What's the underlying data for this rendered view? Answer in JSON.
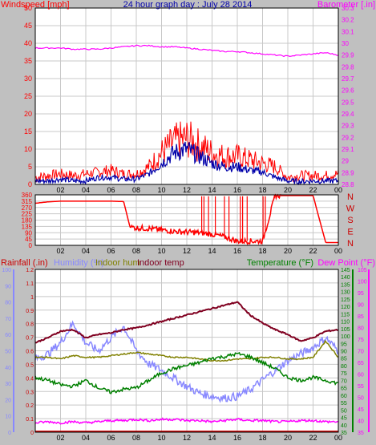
{
  "title": "24 hour graph day : July 28 2014",
  "colors": {
    "background": "#c0c0c0",
    "plot_bg": "#ffffff",
    "grid": "#c8c8c8",
    "windspeed": "#ff0000",
    "windgust_avg": "#0000aa",
    "barometer": "#ff00ff",
    "direction": "#ff0000",
    "rainfall": "#cc0000",
    "humidity": "#8888ff",
    "indoor_hum": "#808000",
    "indoor_temp": "#800020",
    "temperature": "#008000",
    "dew_point": "#ff00ff",
    "title": "#0000aa"
  },
  "x_ticks": [
    "02",
    "04",
    "06",
    "08",
    "10",
    "12",
    "14",
    "16",
    "18",
    "20",
    "22",
    "00"
  ],
  "chart_data": [
    {
      "type": "line",
      "title": "24 hour graph day : July 28 2014",
      "ylabel_left": "Windspeed [mph]",
      "ylabel_right": "Barometer [.in]",
      "ylim_left": [
        0,
        50
      ],
      "ylim_right": [
        28.8,
        30.3
      ],
      "yticks_left": [
        "0",
        "5",
        "10",
        "15",
        "20",
        "25",
        "30",
        "35",
        "40",
        "45",
        "50"
      ],
      "yticks_right": [
        "28.8",
        "28.9",
        "29",
        "29.1",
        "29.2",
        "29.3",
        "29.4",
        "29.5",
        "29.6",
        "29.7",
        "29.8",
        "29.9",
        "30",
        "30.1",
        "30.2",
        "30.3"
      ],
      "x_hours": [
        0,
        1,
        2,
        3,
        4,
        5,
        6,
        7,
        8,
        9,
        10,
        11,
        12,
        13,
        14,
        15,
        16,
        17,
        18,
        19,
        20,
        21,
        22,
        23,
        24
      ],
      "series": [
        {
          "axis": "left",
          "color": "windspeed",
          "values": [
            2,
            2.5,
            3,
            2.5,
            3,
            3.5,
            4,
            3,
            3,
            5,
            9,
            12,
            13,
            11,
            9,
            8,
            8,
            7,
            6,
            5,
            2,
            2.5,
            2.5,
            2.5,
            3
          ]
        },
        {
          "axis": "left",
          "color": "windgust_avg",
          "values": [
            1,
            1,
            1.5,
            1,
            1,
            2,
            2,
            1.5,
            1.5,
            3,
            6,
            9,
            10,
            8,
            6,
            5,
            5,
            4,
            3.5,
            2,
            1,
            0.8,
            1,
            1,
            1
          ]
        },
        {
          "axis": "right",
          "color": "barometer",
          "values": [
            29.96,
            29.96,
            29.96,
            29.95,
            29.95,
            29.95,
            29.96,
            29.97,
            29.98,
            29.98,
            29.97,
            29.97,
            29.96,
            29.95,
            29.94,
            29.93,
            29.93,
            29.92,
            29.91,
            29.9,
            29.89,
            29.9,
            29.91,
            29.92,
            29.9
          ]
        }
      ]
    },
    {
      "type": "line",
      "ylim": [
        0,
        360
      ],
      "yticks": [
        "0",
        "45",
        "90",
        "135",
        "180",
        "225",
        "270",
        "315",
        "360"
      ],
      "compass": [
        "N",
        "W",
        "S",
        "E",
        "N"
      ],
      "x_hours": [
        0,
        1,
        2,
        3,
        4,
        5,
        6,
        7,
        7.5,
        8,
        9,
        10,
        11,
        12,
        13,
        14,
        15,
        16,
        17,
        18,
        19,
        20,
        21,
        22,
        23,
        24
      ],
      "series": [
        {
          "color": "direction",
          "values": [
            300,
            310,
            315,
            315,
            315,
            315,
            315,
            312,
            130,
            125,
            120,
            110,
            100,
            95,
            90,
            80,
            60,
            30,
            30,
            30,
            355,
            355,
            355,
            355,
            20,
            20
          ]
        }
      ],
      "spikes_from_hour": [
        13,
        15,
        16,
        17,
        18
      ],
      "spike_top": 350
    },
    {
      "type": "line",
      "legend": [
        "Rainfall (.in)",
        "Humidity (%)",
        "Indoor hum",
        "Indoor temp",
        "Temperature (°F)",
        "Dew Point (°F)"
      ],
      "ylim_rain": [
        0,
        1.2
      ],
      "ylim_hum": [
        0,
        100
      ],
      "ylim_temp": [
        35,
        145
      ],
      "ylim_dew": [
        35,
        105
      ],
      "yticks_rain": [
        "0",
        "0.1",
        "0.2",
        "0.3",
        "0.4",
        "0.5",
        "0.6",
        "0.7",
        "0.8",
        "0.9",
        "1",
        "1.1",
        "1.2"
      ],
      "yticks_hum": [
        "0",
        "10",
        "20",
        "30",
        "40",
        "50",
        "60",
        "70",
        "80",
        "90",
        "100"
      ],
      "yticks_temp": [
        "35",
        "40",
        "45",
        "50",
        "55",
        "60",
        "65",
        "70",
        "75",
        "80",
        "85",
        "90",
        "95",
        "100",
        "105",
        "110",
        "115",
        "120",
        "125",
        "130",
        "135",
        "140",
        "145"
      ],
      "yticks_dew": [
        "35",
        "40",
        "45",
        "50",
        "55",
        "60",
        "65",
        "70",
        "75",
        "80",
        "85",
        "90",
        "95",
        "100",
        "105"
      ],
      "x_hours": [
        0,
        1,
        2,
        3,
        4,
        5,
        6,
        7,
        8,
        9,
        10,
        11,
        12,
        13,
        14,
        15,
        16,
        17,
        18,
        19,
        20,
        21,
        22,
        23,
        24
      ],
      "series": [
        {
          "axis": "hum",
          "color": "humidity",
          "values": [
            45,
            48,
            55,
            67,
            55,
            50,
            58,
            65,
            50,
            42,
            38,
            33,
            28,
            24,
            22,
            21,
            22,
            26,
            32,
            38,
            44,
            48,
            52,
            58,
            50
          ]
        },
        {
          "axis": "hum",
          "color": "indoor_hum",
          "values": [
            46,
            46,
            45,
            47,
            46,
            46,
            47,
            48,
            49,
            48,
            47,
            46,
            46,
            45,
            44,
            44,
            45,
            45,
            46,
            46,
            45,
            45,
            46,
            56,
            46
          ]
        },
        {
          "axis": "hum",
          "color": "indoor_temp",
          "values": [
            55,
            58,
            62,
            63,
            58,
            60,
            61,
            63,
            64,
            66,
            68,
            70,
            72,
            74,
            76,
            78,
            80,
            72,
            67,
            63,
            60,
            56,
            58,
            62,
            63
          ]
        },
        {
          "axis": "temp",
          "color": "temperature",
          "values": [
            72,
            70,
            67,
            66,
            70,
            65,
            62,
            64,
            65,
            70,
            75,
            78,
            80,
            82,
            85,
            86,
            88,
            86,
            82,
            78,
            72,
            70,
            72,
            70,
            68
          ]
        },
        {
          "axis": "dew",
          "color": "dew_point",
          "values": [
            39,
            39.5,
            39,
            39.5,
            39,
            39.5,
            40,
            40,
            40.5,
            40,
            40.5,
            40.5,
            40,
            40,
            39.5,
            40,
            40.5,
            40,
            40,
            39.5,
            39.5,
            40,
            40,
            39.5,
            39.5
          ]
        }
      ]
    }
  ]
}
